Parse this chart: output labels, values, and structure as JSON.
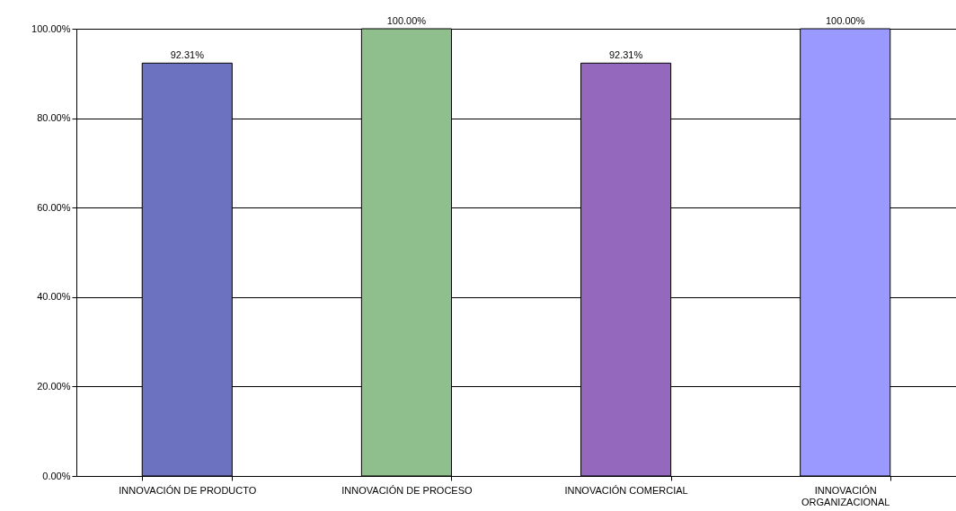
{
  "chart_data": {
    "type": "bar",
    "categories": [
      "INNOVACIÓN DE PRODUCTO",
      "INNOVACIÓN DE PROCESO",
      "INNOVACIÓN COMERCIAL",
      "INNOVACIÓN ORGANIZACIONAL"
    ],
    "values": [
      92.31,
      100,
      92.31,
      100
    ],
    "colors": [
      "#6d72c0",
      "#8fbf8c",
      "#9468bd",
      "#9999ff"
    ],
    "value_labels": [
      "92.31%",
      "100.00%",
      "92.31%",
      "100.00%"
    ],
    "ylim": [
      0,
      100
    ],
    "yticks": [
      {
        "value": 0,
        "label": "0.00%"
      },
      {
        "value": 20,
        "label": "20.00%"
      },
      {
        "value": 40,
        "label": "40.00%"
      },
      {
        "value": 60,
        "label": "60.00%"
      },
      {
        "value": 80,
        "label": "80.00%"
      },
      {
        "value": 100,
        "label": "100.00%"
      }
    ],
    "grid": "y"
  }
}
